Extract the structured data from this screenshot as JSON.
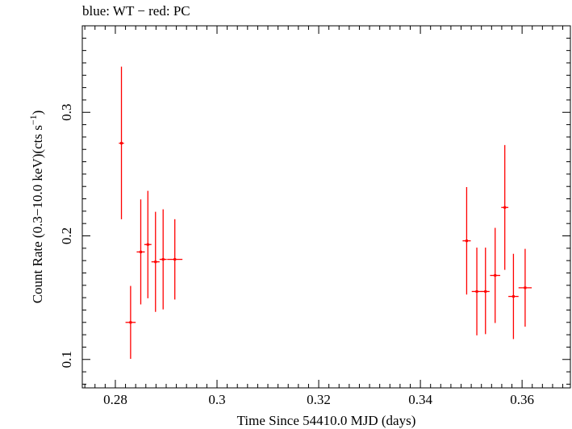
{
  "chart_data": {
    "type": "scatter",
    "title": "blue: WT − red: PC",
    "xlabel": "Time Since 54410.0 MJD (days)",
    "ylabel_main": "Count Rate (0.3−10.0 keV)(cts s",
    "ylabel_sup": "−1",
    "ylabel_end": ")",
    "xlim": [
      0.2735,
      0.3695
    ],
    "ylim": [
      0.077,
      0.37
    ],
    "x_ticks": [
      0.28,
      0.3,
      0.32,
      0.34,
      0.36
    ],
    "x_tick_labels": [
      "0.28",
      "0.3",
      "0.32",
      "0.34",
      "0.36"
    ],
    "y_ticks": [
      0.1,
      0.2,
      0.3
    ],
    "y_tick_labels": [
      "0.1",
      "0.2",
      "0.3"
    ],
    "grid": false,
    "series": [
      {
        "color": "#ff0000",
        "points": [
          {
            "x": 0.2812,
            "y": 0.275,
            "xerr": 0.0005,
            "ylo": 0.2135,
            "yhi": 0.337
          },
          {
            "x": 0.283,
            "y": 0.13,
            "xerr": 0.001,
            "ylo": 0.1005,
            "yhi": 0.1595
          },
          {
            "x": 0.285,
            "y": 0.187,
            "xerr": 0.0008,
            "ylo": 0.1445,
            "yhi": 0.2295
          },
          {
            "x": 0.2864,
            "y": 0.193,
            "xerr": 0.0007,
            "ylo": 0.1495,
            "yhi": 0.2365
          },
          {
            "x": 0.2879,
            "y": 0.179,
            "xerr": 0.0008,
            "ylo": 0.1385,
            "yhi": 0.2195
          },
          {
            "x": 0.2894,
            "y": 0.181,
            "xerr": 0.0007,
            "ylo": 0.1405,
            "yhi": 0.2215
          },
          {
            "x": 0.2917,
            "y": 0.181,
            "xerr": 0.0015,
            "ylo": 0.1485,
            "yhi": 0.2135
          },
          {
            "x": 0.3491,
            "y": 0.196,
            "xerr": 0.0008,
            "ylo": 0.1525,
            "yhi": 0.2395
          },
          {
            "x": 0.3511,
            "y": 0.155,
            "xerr": 0.001,
            "ylo": 0.1195,
            "yhi": 0.1905
          },
          {
            "x": 0.3528,
            "y": 0.155,
            "xerr": 0.0008,
            "ylo": 0.1205,
            "yhi": 0.1905
          },
          {
            "x": 0.3547,
            "y": 0.168,
            "xerr": 0.001,
            "ylo": 0.1295,
            "yhi": 0.2065
          },
          {
            "x": 0.3566,
            "y": 0.223,
            "xerr": 0.0007,
            "ylo": 0.1725,
            "yhi": 0.2735
          },
          {
            "x": 0.3583,
            "y": 0.151,
            "xerr": 0.001,
            "ylo": 0.1165,
            "yhi": 0.1855
          },
          {
            "x": 0.3606,
            "y": 0.158,
            "xerr": 0.0013,
            "ylo": 0.1265,
            "yhi": 0.1895
          }
        ]
      }
    ]
  }
}
